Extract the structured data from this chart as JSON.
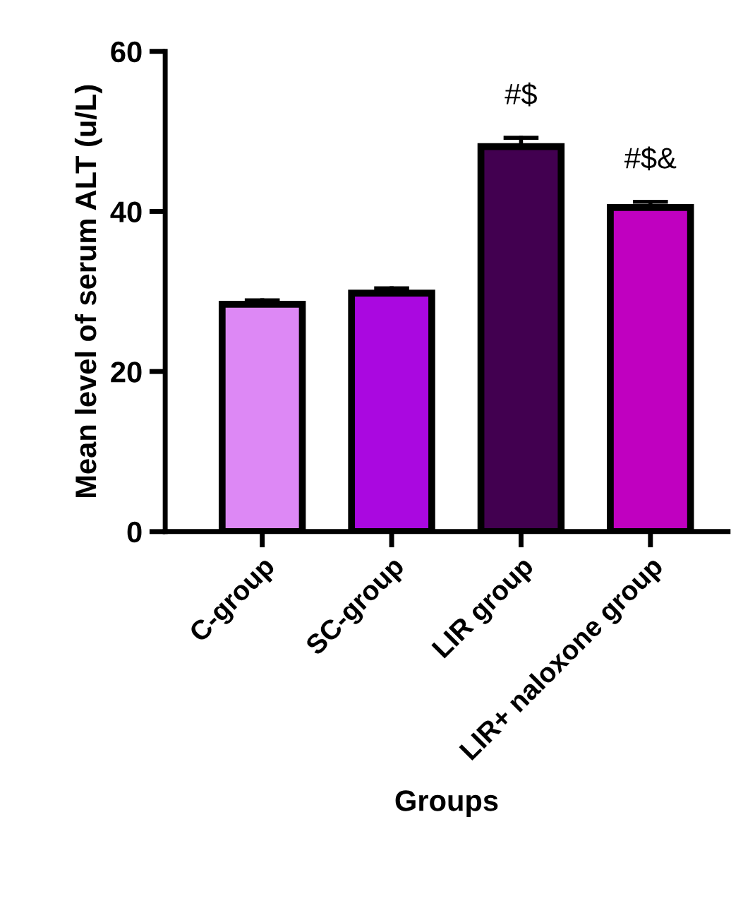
{
  "chart_data": {
    "type": "bar",
    "xlabel": "Groups",
    "ylabel": "Mean level of serum ALT (u/L)",
    "categories": [
      "C-group",
      "SC-group",
      "LIR group",
      "LIR+ naloxone group"
    ],
    "values": [
      28.4,
      29.8,
      48.1,
      40.5
    ],
    "colors": [
      "#dd88f5",
      "#aa08e0",
      "#420050",
      "#c000c0"
    ],
    "errors": [
      [
        28.4,
        28.9
      ],
      [
        29.8,
        30.4
      ],
      [
        48.1,
        49.2
      ],
      [
        40.5,
        41.2
      ]
    ],
    "ylim": [
      0,
      60
    ],
    "yticks": [
      0,
      20,
      40,
      60
    ],
    "grid": false,
    "legend": false,
    "annotations": [
      {
        "text": "#$",
        "x": "LIR group",
        "y": 49.2
      },
      {
        "text": "#$&",
        "x": "LIR+ naloxone group",
        "y": 41.2
      }
    ]
  }
}
